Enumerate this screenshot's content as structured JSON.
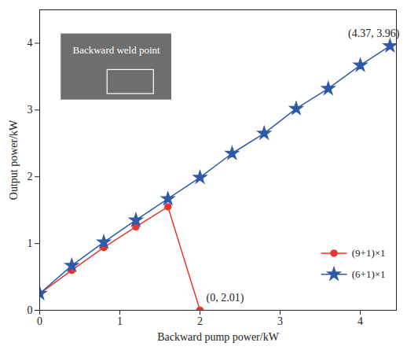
{
  "chart_data": {
    "type": "line",
    "x_label": "Backward pump power/kW",
    "y_label": "Output power/kW",
    "xlim": [
      0,
      4.45
    ],
    "ylim": [
      0,
      4.5
    ],
    "xticks": [
      0,
      1,
      2,
      3,
      4
    ],
    "yticks": [
      0,
      1,
      2,
      3,
      4
    ],
    "grid": false,
    "legend": "lower right",
    "inset_label": "Backward weld point",
    "annotations": [
      {
        "text": "(4.37, 3.96)",
        "x": 4.37,
        "y": 3.96
      },
      {
        "text": "(0, 2.01)",
        "x": 2.0,
        "y": 0.0
      }
    ],
    "series": [
      {
        "name": "(9+1)×1",
        "color": "#e8362d",
        "marker": "circle",
        "line_style": "solid",
        "x": [
          0,
          0.4,
          0.8,
          1.2,
          1.6,
          2.0
        ],
        "values": [
          0.25,
          0.6,
          0.94,
          1.25,
          1.55,
          0.0
        ]
      },
      {
        "name": "(6+1)×1",
        "color": "#2e5aa8",
        "marker": "star",
        "line_style": "solid",
        "x": [
          0,
          0.4,
          0.8,
          1.2,
          1.6,
          2.0,
          2.4,
          2.8,
          3.2,
          3.6,
          4.0,
          4.37
        ],
        "values": [
          0.25,
          0.67,
          1.02,
          1.35,
          1.67,
          1.99,
          2.35,
          2.65,
          3.02,
          3.32,
          3.67,
          3.96
        ]
      }
    ]
  }
}
